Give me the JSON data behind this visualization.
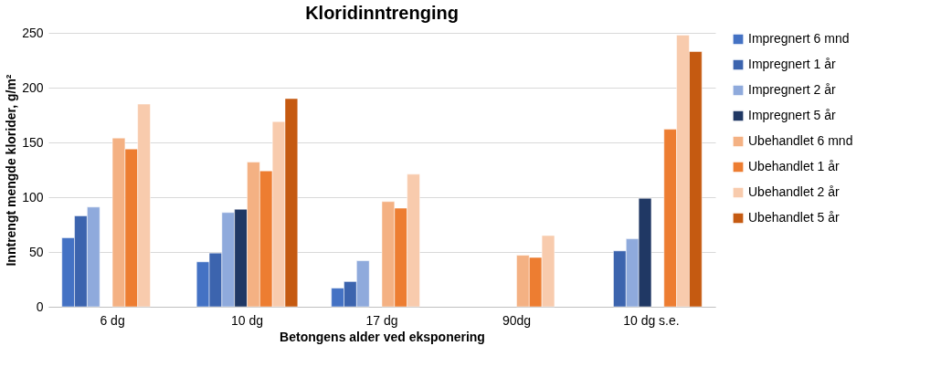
{
  "chart_data": {
    "type": "bar",
    "title": "Kloridinntrenging",
    "xlabel": "Betongens alder ved eksponering",
    "ylabel": "Inntrengt mengde klorider, g/m²",
    "categories": [
      "6 dg",
      "10 dg",
      "17 dg",
      "90dg",
      "10 dg s.e."
    ],
    "series": [
      {
        "name": "Impregnert 6 mnd",
        "color": "#4472c4",
        "values": [
          63,
          41,
          17,
          null,
          null
        ]
      },
      {
        "name": "Impregnert 1 år",
        "color": "#3c64ae",
        "values": [
          83,
          49,
          23,
          null,
          51
        ]
      },
      {
        "name": "Impregnert 2 år",
        "color": "#8faadc",
        "values": [
          91,
          86,
          42,
          null,
          62
        ]
      },
      {
        "name": "Impregnert 5 år",
        "color": "#203864",
        "values": [
          null,
          89,
          null,
          null,
          99
        ]
      },
      {
        "name": "Ubehandlet 6 mnd",
        "color": "#f4b183",
        "values": [
          154,
          132,
          96,
          47,
          null
        ]
      },
      {
        "name": "Ubehandlet 1 år",
        "color": "#ed7d31",
        "values": [
          144,
          124,
          90,
          45,
          162
        ]
      },
      {
        "name": "Ubehandlet 2 år",
        "color": "#f8cbad",
        "values": [
          185,
          169,
          121,
          65,
          248
        ]
      },
      {
        "name": "Ubehandlet 5 år",
        "color": "#c55a11",
        "values": [
          null,
          190,
          null,
          null,
          233
        ]
      }
    ],
    "ylim": [
      0,
      250
    ],
    "yticks": [
      0,
      50,
      100,
      150,
      200,
      250
    ],
    "grid": "y",
    "legend": "right"
  }
}
